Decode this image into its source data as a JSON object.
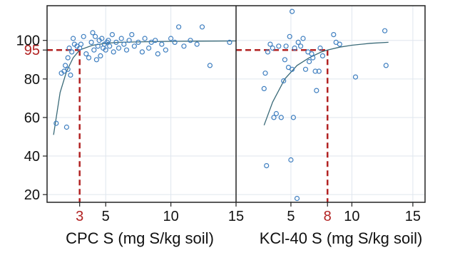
{
  "colors": {
    "point": "#3f7fc0",
    "fit": "#3a6a78",
    "threshold": "#b22222",
    "grid": "#dfe6ee",
    "frame": "#222222"
  },
  "chart_data": [
    {
      "type": "scatter",
      "xlabel": "CPC S (mg S/kg soil)",
      "ylabel": "",
      "xlim": [
        0.5,
        15
      ],
      "ylim": [
        16,
        118
      ],
      "x_ticks": [
        3,
        5,
        10,
        15
      ],
      "x_tick_labels": [
        "3",
        "5",
        "10",
        "15"
      ],
      "y_ticks": [
        20,
        40,
        60,
        80,
        95,
        100
      ],
      "y_tick_labels": [
        "20",
        "40",
        "60",
        "80",
        "95",
        "100"
      ],
      "highlight": {
        "x": 3,
        "y": 95
      },
      "grid": true,
      "fit_curve": {
        "x": [
          1.0,
          1.5,
          2.0,
          2.5,
          3.0,
          4.0,
          5.0,
          6.0,
          8.0,
          10.0,
          12.0,
          15.0
        ],
        "y": [
          51,
          73,
          84,
          91,
          95,
          97.5,
          98.5,
          99,
          99.3,
          99.5,
          99.6,
          99.7
        ]
      },
      "points": {
        "x": [
          1.2,
          1.6,
          1.8,
          1.9,
          2.0,
          2.1,
          2.1,
          2.2,
          2.3,
          2.4,
          2.5,
          2.6,
          2.8,
          3.0,
          3.1,
          3.3,
          3.5,
          3.7,
          3.9,
          4.0,
          4.1,
          4.2,
          4.3,
          4.4,
          4.5,
          4.6,
          4.7,
          4.8,
          4.9,
          5.0,
          5.1,
          5.2,
          5.3,
          5.5,
          5.6,
          5.8,
          6.0,
          6.2,
          6.4,
          6.6,
          6.8,
          7.0,
          7.2,
          7.5,
          7.8,
          8.0,
          8.3,
          8.5,
          8.8,
          9.0,
          9.3,
          9.6,
          10.0,
          10.3,
          10.6,
          11.0,
          11.5,
          12.0,
          12.4,
          13.0,
          14.5
        ],
        "y": [
          57,
          83,
          84,
          87,
          55,
          91,
          85,
          96,
          82,
          94,
          101,
          98,
          97,
          96,
          98,
          102,
          93,
          91,
          99,
          104,
          95,
          102,
          90,
          97,
          100,
          92,
          101,
          96,
          98,
          95,
          99,
          100,
          97,
          103,
          94,
          99,
          96,
          101,
          98,
          95,
          100,
          103,
          97,
          99,
          94,
          101,
          96,
          99,
          100,
          93,
          98,
          95,
          101,
          99,
          107,
          97,
          100,
          98,
          107,
          87,
          99
        ]
      }
    },
    {
      "type": "scatter",
      "xlabel": "KCl-40 S (mg S/kg soil)",
      "ylabel": "",
      "xlim": [
        0.5,
        16
      ],
      "ylim": [
        16,
        118
      ],
      "x_ticks": [
        5,
        8,
        10,
        15
      ],
      "x_tick_labels": [
        "5",
        "8",
        "10",
        "15"
      ],
      "highlight": {
        "x": 8,
        "y": 95
      },
      "grid": true,
      "fit_curve": {
        "x": [
          2.8,
          3.5,
          4.5,
          5.5,
          6.5,
          7.5,
          8.0,
          9.0,
          10.0,
          11.5,
          13.0
        ],
        "y": [
          56,
          68,
          80,
          87,
          91,
          94,
          95,
          96.5,
          97.5,
          98.5,
          99
        ]
      },
      "points": {
        "x": [
          2.8,
          2.9,
          3.0,
          3.1,
          3.3,
          3.5,
          3.6,
          3.8,
          4.0,
          4.2,
          4.4,
          4.5,
          4.6,
          4.8,
          4.9,
          5.0,
          5.1,
          5.1,
          5.2,
          5.3,
          5.5,
          5.6,
          5.8,
          6.0,
          6.2,
          6.4,
          6.5,
          6.7,
          6.8,
          7.0,
          7.1,
          7.3,
          7.4,
          7.6,
          8.5,
          8.7,
          9.0,
          10.3,
          12.7,
          12.8
        ],
        "y": [
          75,
          83,
          35,
          94,
          98,
          96,
          60,
          62,
          97,
          60,
          79,
          90,
          97,
          86,
          102,
          38,
          85,
          115,
          60,
          96,
          18,
          99,
          97,
          101,
          85,
          94,
          89,
          93,
          91,
          84,
          74,
          84,
          96,
          92,
          103,
          99,
          98,
          81,
          105,
          87
        ]
      }
    }
  ]
}
